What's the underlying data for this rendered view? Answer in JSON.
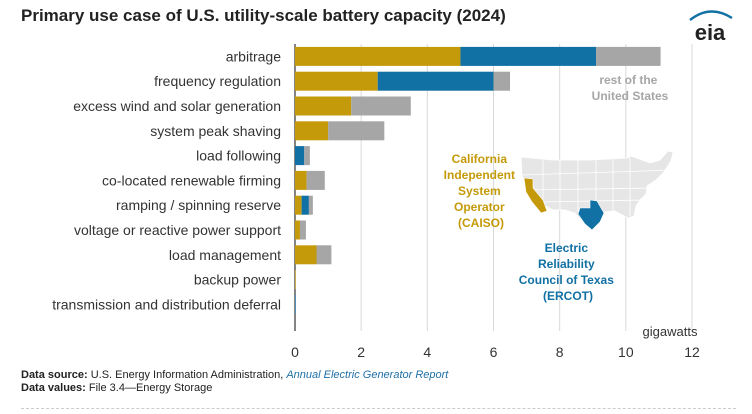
{
  "title": "Primary use case of U.S. utility-scale battery capacity (2024)",
  "logo_text": "eia",
  "chart_data": {
    "type": "bar",
    "orientation": "horizontal",
    "stacked": true,
    "categories": [
      "arbitrage",
      "frequency regulation",
      "excess wind and solar generation",
      "system peak shaving",
      "load following",
      "co-located renewable firming",
      "ramping / spinning reserve",
      "voltage or reactive power support",
      "load management",
      "backup power",
      "transmission and distribution deferral"
    ],
    "series": [
      {
        "name": "California Independent System Operator (CAISO)",
        "color": "#c49a0a",
        "values": [
          5.0,
          2.5,
          1.7,
          1.0,
          0.0,
          0.35,
          0.2,
          0.15,
          0.65,
          0.02,
          0.0
        ]
      },
      {
        "name": "Electric Reliability Council of Texas (ERCOT)",
        "color": "#1170a4",
        "values": [
          4.1,
          3.5,
          0.0,
          0.0,
          0.28,
          0.0,
          0.22,
          0.0,
          0.0,
          0.0,
          0.02
        ]
      },
      {
        "name": "rest of the United States",
        "color": "#a6a6a6",
        "values": [
          1.95,
          0.5,
          1.8,
          1.7,
          0.17,
          0.55,
          0.12,
          0.18,
          0.45,
          0.0,
          0.0
        ]
      }
    ],
    "xlabel": "gigawatts",
    "xlim": [
      0,
      12
    ],
    "xticks": [
      0,
      2,
      4,
      6,
      8,
      10,
      12
    ],
    "grid": true,
    "annotations": {
      "rest": "rest of the United States",
      "caiso": "California Independent System Operator (CAISO)",
      "ercot": "Electric Reliability Council of Texas (ERCOT)"
    }
  },
  "footer": {
    "source_label": "Data source:",
    "source_text": " U.S. Energy Information Administration, ",
    "source_link": "Annual Electric Generator Report",
    "values_label": "Data values:",
    "values_text": " File 3.4—Energy Storage"
  }
}
